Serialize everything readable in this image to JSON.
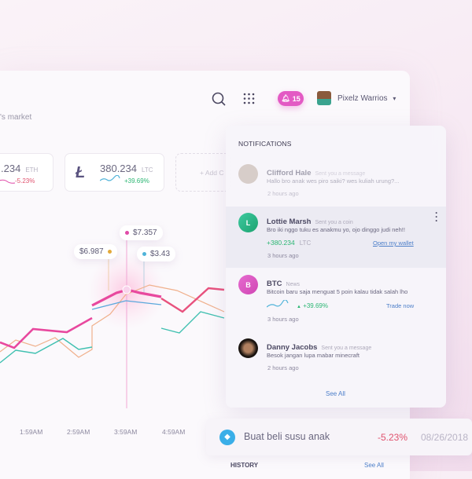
{
  "header": {
    "subtitle": "'s market",
    "notification_count": "15",
    "user_name": "Pixelz Warrios"
  },
  "coins": [
    {
      "value": ".234",
      "unit": "ETH",
      "change": "-5.23%"
    },
    {
      "value": "380.234",
      "unit": "LTC",
      "change": "+39.69%"
    },
    {
      "add_label": "+ Add C"
    }
  ],
  "chart": {
    "tooltips": [
      {
        "value": "$6.987",
        "color": "#e3a93a"
      },
      {
        "value": "$7.357",
        "color": "#e04aa8"
      },
      {
        "value": "$3.43",
        "color": "#4fb3d9"
      }
    ],
    "x_labels": [
      "1:59AM",
      "2:59AM",
      "3:59AM",
      "4:59AM"
    ]
  },
  "notifications": {
    "title": "NOTIFICATIONS",
    "items": [
      {
        "name": "Clifford Hale",
        "action": "Sent you a message",
        "message": "Hallo bro anak wes piro saiki? wes kuliah urung?...",
        "time": "2 hours ago"
      },
      {
        "name": "Lottie Marsh",
        "initial": "L",
        "action": "Sent you a coin",
        "message": "Bro iki nggo tuku es anakmu yo, ojo dinggo judi neh!!",
        "amount": "+380.234",
        "unit": "LTC",
        "link": "Open my wallet",
        "time": "3 hours ago"
      },
      {
        "name": "BTC",
        "initial": "B",
        "action": "News",
        "message": "Bitcoin baru saja menguat 5 poin kalau tidak salah lho",
        "change": "+39.69%",
        "link": "Trade now",
        "time": "3 hours ago"
      },
      {
        "name": "Danny Jacobs",
        "action": "Sent you a message",
        "message": "Besok jangan lupa mabar minecraft",
        "time": "2 hours ago"
      }
    ],
    "see_all": "See All"
  },
  "transaction": {
    "label": "Buat beli susu anak",
    "change": "-5.23%",
    "date": "08/26/2018"
  },
  "history": {
    "title": "HISTORY",
    "see_all": "See All"
  },
  "colors": {
    "pink": "#e35ac4",
    "green": "#2bb673",
    "red": "#e0526e",
    "blue": "#4d7fc9"
  }
}
